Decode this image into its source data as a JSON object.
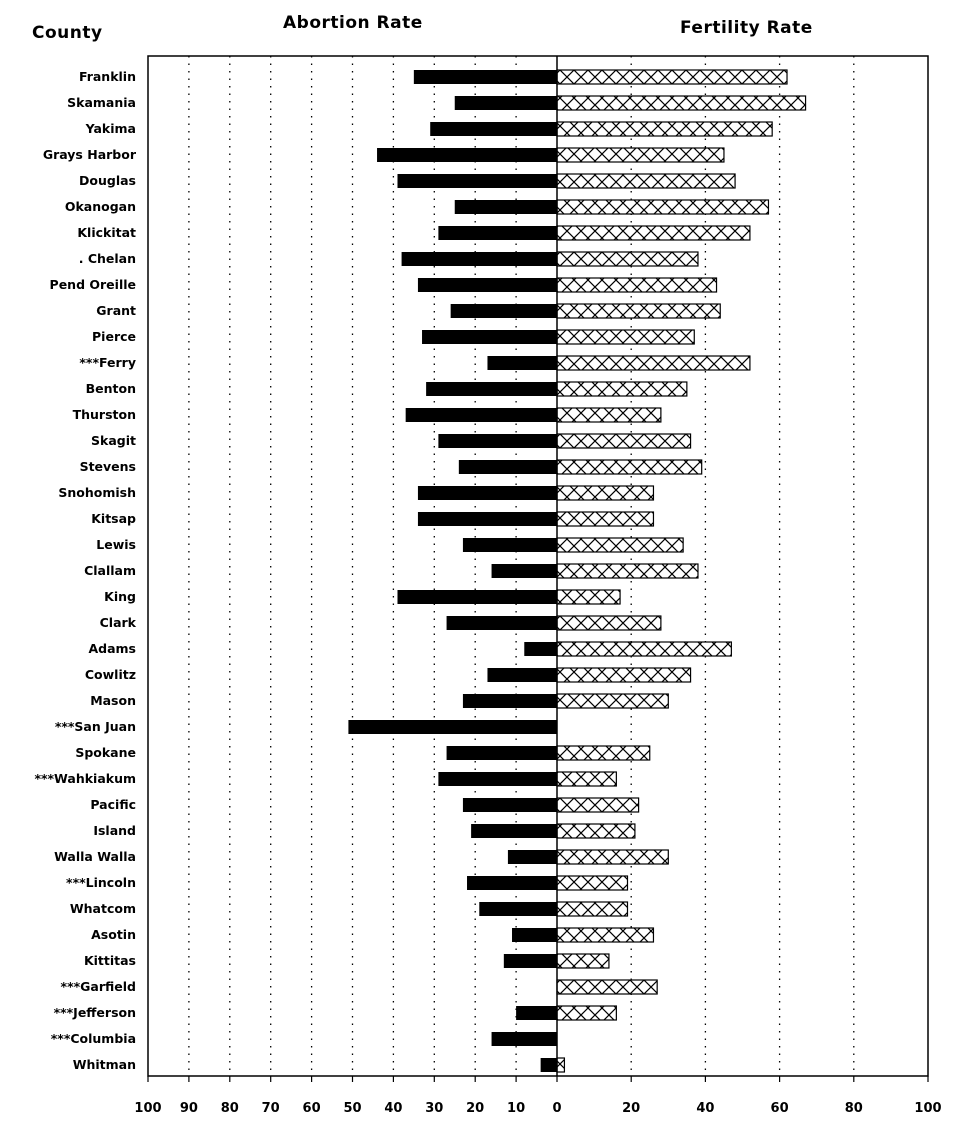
{
  "headers": {
    "county": "County",
    "abortion": "Abortion Rate",
    "fertility": "Fertility Rate"
  },
  "chart_data": {
    "type": "bar",
    "orientation": "horizontal-diverging",
    "title": "",
    "left_series": {
      "name": "Abortion Rate",
      "fill": "#000000"
    },
    "right_series": {
      "name": "Fertility Rate",
      "fill": "crosshatch"
    },
    "xlim": [
      0,
      100
    ],
    "left_ticks": [
      "100",
      "90",
      "80",
      "70",
      "60",
      "50",
      "40",
      "30",
      "20",
      "10",
      "0"
    ],
    "right_ticks": [
      "20",
      "40",
      "60",
      "80",
      "100"
    ],
    "grid": "dotted vertical",
    "categories": [
      {
        "name": "Franklin",
        "abortion": 35,
        "fertility": 62
      },
      {
        "name": "Skamania",
        "abortion": 25,
        "fertility": 67
      },
      {
        "name": "Yakima",
        "abortion": 31,
        "fertility": 58
      },
      {
        "name": "Grays Harbor",
        "abortion": 44,
        "fertility": 45
      },
      {
        "name": "Douglas",
        "abortion": 39,
        "fertility": 48
      },
      {
        "name": "Okanogan",
        "abortion": 25,
        "fertility": 57
      },
      {
        "name": "Klickitat",
        "abortion": 29,
        "fertility": 52
      },
      {
        "name": ". Chelan",
        "abortion": 38,
        "fertility": 38
      },
      {
        "name": "Pend Oreille",
        "abortion": 34,
        "fertility": 43
      },
      {
        "name": "Grant",
        "abortion": 26,
        "fertility": 44
      },
      {
        "name": "Pierce",
        "abortion": 33,
        "fertility": 37
      },
      {
        "name": "***Ferry",
        "abortion": 17,
        "fertility": 52
      },
      {
        "name": "Benton",
        "abortion": 32,
        "fertility": 35
      },
      {
        "name": "Thurston",
        "abortion": 37,
        "fertility": 28
      },
      {
        "name": "Skagit",
        "abortion": 29,
        "fertility": 36
      },
      {
        "name": "Stevens",
        "abortion": 24,
        "fertility": 39
      },
      {
        "name": "Snohomish",
        "abortion": 34,
        "fertility": 26
      },
      {
        "name": "Kitsap",
        "abortion": 34,
        "fertility": 26
      },
      {
        "name": "Lewis",
        "abortion": 23,
        "fertility": 34
      },
      {
        "name": "Clallam",
        "abortion": 16,
        "fertility": 38
      },
      {
        "name": "King",
        "abortion": 39,
        "fertility": 17
      },
      {
        "name": "Clark",
        "abortion": 27,
        "fertility": 28
      },
      {
        "name": "Adams",
        "abortion": 8,
        "fertility": 47
      },
      {
        "name": "Cowlitz",
        "abortion": 17,
        "fertility": 36
      },
      {
        "name": "Mason",
        "abortion": 23,
        "fertility": 30
      },
      {
        "name": "***San Juan",
        "abortion": 51,
        "fertility": 0
      },
      {
        "name": "Spokane",
        "abortion": 27,
        "fertility": 25
      },
      {
        "name": "***Wahkiakum",
        "abortion": 29,
        "fertility": 16
      },
      {
        "name": "Pacific",
        "abortion": 23,
        "fertility": 22
      },
      {
        "name": "Island",
        "abortion": 21,
        "fertility": 21
      },
      {
        "name": "Walla Walla",
        "abortion": 12,
        "fertility": 30
      },
      {
        "name": "***Lincoln",
        "abortion": 22,
        "fertility": 19
      },
      {
        "name": "Whatcom",
        "abortion": 19,
        "fertility": 19
      },
      {
        "name": "Asotin",
        "abortion": 11,
        "fertility": 26
      },
      {
        "name": "Kittitas",
        "abortion": 13,
        "fertility": 14
      },
      {
        "name": "***Garfield",
        "abortion": 0,
        "fertility": 27
      },
      {
        "name": "***Jefferson",
        "abortion": 10,
        "fertility": 16
      },
      {
        "name": "***Columbia",
        "abortion": 16,
        "fertility": 0
      },
      {
        "name": "Whitman",
        "abortion": 4,
        "fertility": 2
      }
    ]
  }
}
